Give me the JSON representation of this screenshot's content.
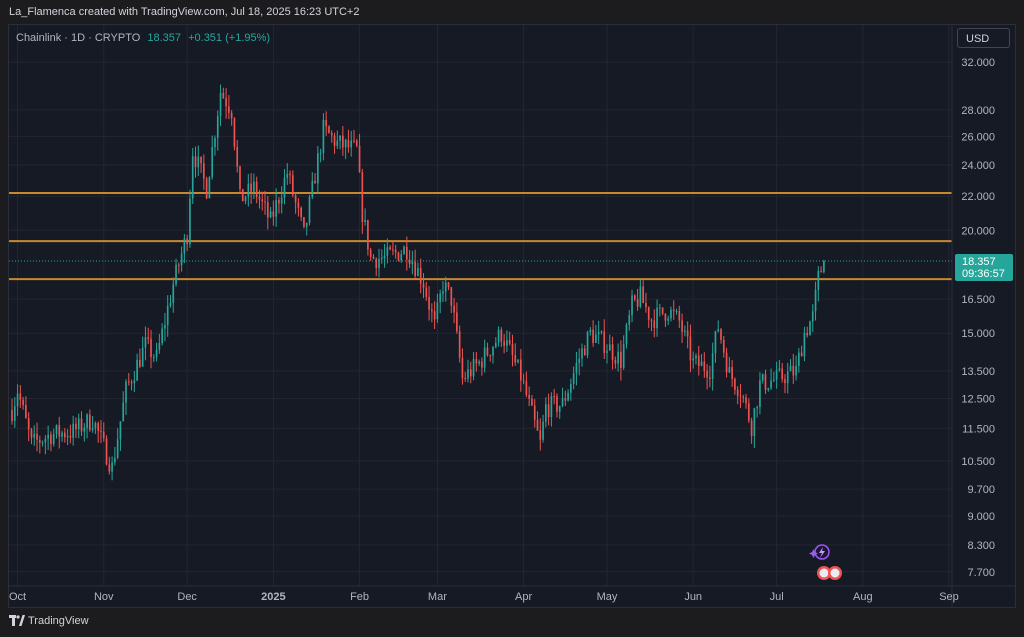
{
  "header": {
    "attribution": "La_Flamenca created with TradingView.com, Jul 18, 2025 16:23 UTC+2"
  },
  "legend": {
    "symbol": "Chainlink · 1D · CRYPTO",
    "last": "18.357",
    "change": "+0.351 (+1.95%)"
  },
  "toolbar": {
    "currency": "USD"
  },
  "footer": {
    "brand": "TradingView"
  },
  "colors": {
    "background": "#161a25",
    "up": "#26a69a",
    "down": "#ef5350",
    "level_line": "#c8892e",
    "grid": "#232632"
  },
  "chart_data": {
    "type": "candlestick",
    "timeframe": "1D",
    "y_scale": "log",
    "ylim": [
      7.4,
      35.5
    ],
    "y_ticks": [
      "32.000",
      "28.000",
      "26.000",
      "24.000",
      "22.000",
      "20.000",
      "16.500",
      "15.000",
      "13.500",
      "12.500",
      "11.500",
      "10.500",
      "9.700",
      "9.000",
      "8.300",
      "7.700"
    ],
    "y_tick_values": [
      32,
      28,
      26,
      24,
      22,
      20,
      16.5,
      15,
      13.5,
      12.5,
      11.5,
      10.5,
      9.7,
      9.0,
      8.3,
      7.7
    ],
    "x_ticks": [
      {
        "label": "Oct",
        "date": "2024-10-01"
      },
      {
        "label": "Nov",
        "date": "2024-11-01"
      },
      {
        "label": "Dec",
        "date": "2024-12-01"
      },
      {
        "label": "2025",
        "date": "2025-01-01"
      },
      {
        "label": "Feb",
        "date": "2025-02-01"
      },
      {
        "label": "Mar",
        "date": "2025-03-01"
      },
      {
        "label": "Apr",
        "date": "2025-04-01"
      },
      {
        "label": "May",
        "date": "2025-05-01"
      },
      {
        "label": "Jun",
        "date": "2025-06-01"
      },
      {
        "label": "Jul",
        "date": "2025-07-01"
      },
      {
        "label": "Aug",
        "date": "2025-08-01"
      },
      {
        "label": "Sep",
        "date": "2025-09-01"
      }
    ],
    "x_range": [
      "2024-09-29",
      "2025-09-01"
    ],
    "horizontal_levels": [
      22.2,
      19.4,
      17.45
    ],
    "last_price": {
      "value": 18.357,
      "label": "18.357",
      "countdown": "09:36:57"
    },
    "anchors": [
      {
        "date": "2024-09-29",
        "close": 12.1
      },
      {
        "date": "2024-10-01",
        "close": 12.8
      },
      {
        "date": "2024-10-06",
        "close": 11.0
      },
      {
        "date": "2024-10-13",
        "close": 11.3
      },
      {
        "date": "2024-10-21",
        "close": 11.4
      },
      {
        "date": "2024-10-28",
        "close": 11.8
      },
      {
        "date": "2024-11-04",
        "close": 10.3
      },
      {
        "date": "2024-11-09",
        "close": 12.8
      },
      {
        "date": "2024-11-16",
        "close": 14.5
      },
      {
        "date": "2024-11-20",
        "close": 14.0
      },
      {
        "date": "2024-11-26",
        "close": 17.2
      },
      {
        "date": "2024-12-01",
        "close": 19.8
      },
      {
        "date": "2024-12-03",
        "close": 25.0
      },
      {
        "date": "2024-12-08",
        "close": 22.5
      },
      {
        "date": "2024-12-13",
        "close": 29.5
      },
      {
        "date": "2024-12-17",
        "close": 28.0
      },
      {
        "date": "2024-12-20",
        "close": 21.8
      },
      {
        "date": "2024-12-25",
        "close": 22.5
      },
      {
        "date": "2024-12-31",
        "close": 20.5
      },
      {
        "date": "2025-01-06",
        "close": 23.5
      },
      {
        "date": "2025-01-12",
        "close": 19.7
      },
      {
        "date": "2025-01-19",
        "close": 26.5
      },
      {
        "date": "2025-01-24",
        "close": 25.5
      },
      {
        "date": "2025-01-31",
        "close": 25.0
      },
      {
        "date": "2025-02-02",
        "close": 21.0
      },
      {
        "date": "2025-02-05",
        "close": 18.5
      },
      {
        "date": "2025-02-10",
        "close": 18.5
      },
      {
        "date": "2025-02-18",
        "close": 19.0
      },
      {
        "date": "2025-02-24",
        "close": 17.3
      },
      {
        "date": "2025-02-28",
        "close": 15.3
      },
      {
        "date": "2025-03-03",
        "close": 17.2
      },
      {
        "date": "2025-03-06",
        "close": 16.5
      },
      {
        "date": "2025-03-10",
        "close": 13.2
      },
      {
        "date": "2025-03-16",
        "close": 13.8
      },
      {
        "date": "2025-03-24",
        "close": 15.0
      },
      {
        "date": "2025-03-31",
        "close": 13.3
      },
      {
        "date": "2025-04-07",
        "close": 11.0
      },
      {
        "date": "2025-04-09",
        "close": 12.2
      },
      {
        "date": "2025-04-15",
        "close": 12.3
      },
      {
        "date": "2025-04-21",
        "close": 14.0
      },
      {
        "date": "2025-04-25",
        "close": 15.0
      },
      {
        "date": "2025-04-30",
        "close": 14.6
      },
      {
        "date": "2025-05-06",
        "close": 13.9
      },
      {
        "date": "2025-05-10",
        "close": 16.2
      },
      {
        "date": "2025-05-13",
        "close": 16.6
      },
      {
        "date": "2025-05-17",
        "close": 15.6
      },
      {
        "date": "2025-05-23",
        "close": 16.0
      },
      {
        "date": "2025-05-27",
        "close": 15.5
      },
      {
        "date": "2025-06-01",
        "close": 13.8
      },
      {
        "date": "2025-06-07",
        "close": 13.6
      },
      {
        "date": "2025-06-10",
        "close": 15.3
      },
      {
        "date": "2025-06-14",
        "close": 13.4
      },
      {
        "date": "2025-06-18",
        "close": 12.8
      },
      {
        "date": "2025-06-22",
        "close": 11.6
      },
      {
        "date": "2025-06-25",
        "close": 13.0
      },
      {
        "date": "2025-07-01",
        "close": 13.2
      },
      {
        "date": "2025-07-08",
        "close": 13.5
      },
      {
        "date": "2025-07-11",
        "close": 15.0
      },
      {
        "date": "2025-07-14",
        "close": 15.7
      },
      {
        "date": "2025-07-16",
        "close": 17.5
      },
      {
        "date": "2025-07-18",
        "close": 18.357
      }
    ]
  }
}
